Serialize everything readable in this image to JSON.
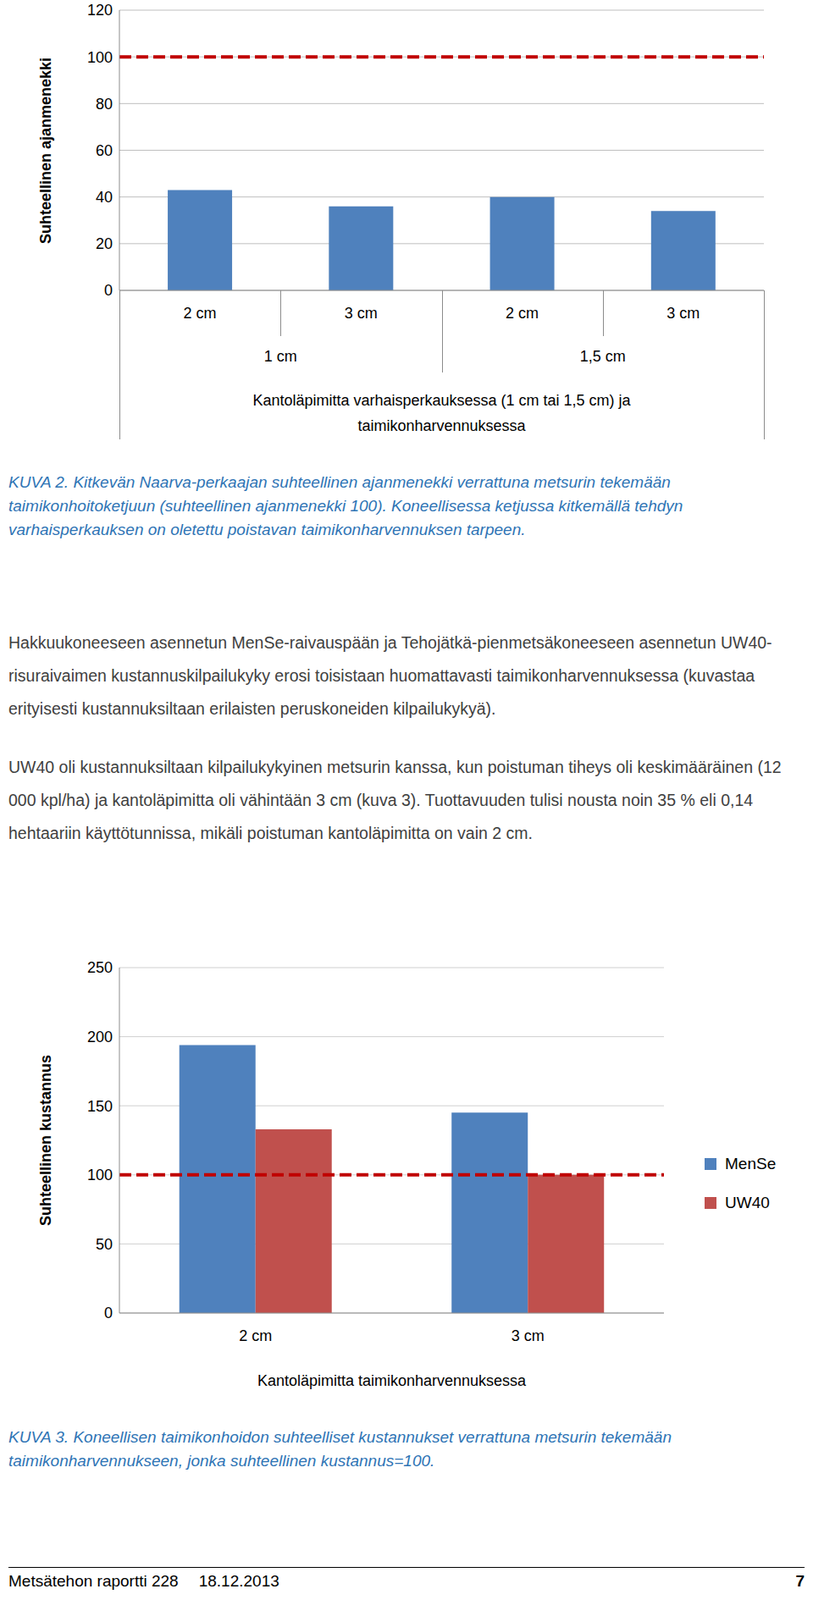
{
  "chart_data": [
    {
      "type": "bar",
      "ylabel": "Suhteellinen ajanmenekki",
      "xlabel": "Kantoläpimitta varhaisperkauksessa (1 cm tai 1,5 cm) ja taimikonharvennuksessa",
      "categories": [
        "2 cm",
        "3 cm",
        "2 cm",
        "3 cm"
      ],
      "groups": [
        "1 cm",
        "1,5 cm"
      ],
      "values": [
        43,
        36,
        40,
        34
      ],
      "color": "#4f81bd",
      "ylim": [
        0,
        120
      ],
      "yticks": [
        0,
        20,
        40,
        60,
        80,
        100,
        120
      ],
      "grid": true,
      "reference_line": 100
    },
    {
      "type": "bar",
      "ylabel": "Suhteellinen kustannus",
      "xlabel": "Kantoläpimitta taimikonharvennuksessa",
      "categories": [
        "2 cm",
        "3 cm"
      ],
      "series": [
        {
          "name": "MenSe",
          "color": "#4f81bd",
          "values": [
            194,
            145
          ]
        },
        {
          "name": "UW40",
          "color": "#c0504d",
          "values": [
            133,
            100
          ]
        }
      ],
      "ylim": [
        0,
        250
      ],
      "yticks": [
        0,
        50,
        100,
        150,
        200,
        250
      ],
      "grid": true,
      "legend": "right",
      "reference_line": 100
    }
  ],
  "captions": [
    "KUVA 2. Kitkevän Naarva-perkaajan suhteellinen ajanmenekki verrattuna metsurin tekemään taimikonhoitoketjuun (suhteellinen ajanmenekki 100). Koneellisessa ketjussa kitkemällä tehdyn varhaisperkauksen on oletettu poistavan taimikonharvennuksen tarpeen.",
    "KUVA 3. Koneellisen taimikonhoidon suhteelliset kustannukset verrattuna metsurin tekemään taimikonharvennukseen, jonka suhteellinen kustannus=100."
  ],
  "paragraphs": [
    "Hakkuukoneeseen asennetun MenSe-raivauspään ja Tehojätkä-pienmetsäkoneeseen asennetun UW40-risuraivaimen kustannuskilpailukyky erosi toisistaan huomattavasti taimikonharvennuksessa (kuvastaa erityisesti kustannuksiltaan erilaisten peruskoneiden kilpailukykyä).",
    "UW40 oli kustannuksiltaan kilpailukykyinen metsurin kanssa, kun poistuman tiheys oli keskimääräinen (12 000 kpl/ha) ja kantoläpimitta oli vähintään 3 cm (kuva 3). Tuottavuuden tulisi nousta noin 35 % eli 0,14 hehtaariin käyttötunnissa, mikäli poistuman kantoläpimitta on vain 2 cm."
  ],
  "footer": {
    "report": "Metsätehon raportti 228",
    "date": "18.12.2013",
    "page": 7
  }
}
